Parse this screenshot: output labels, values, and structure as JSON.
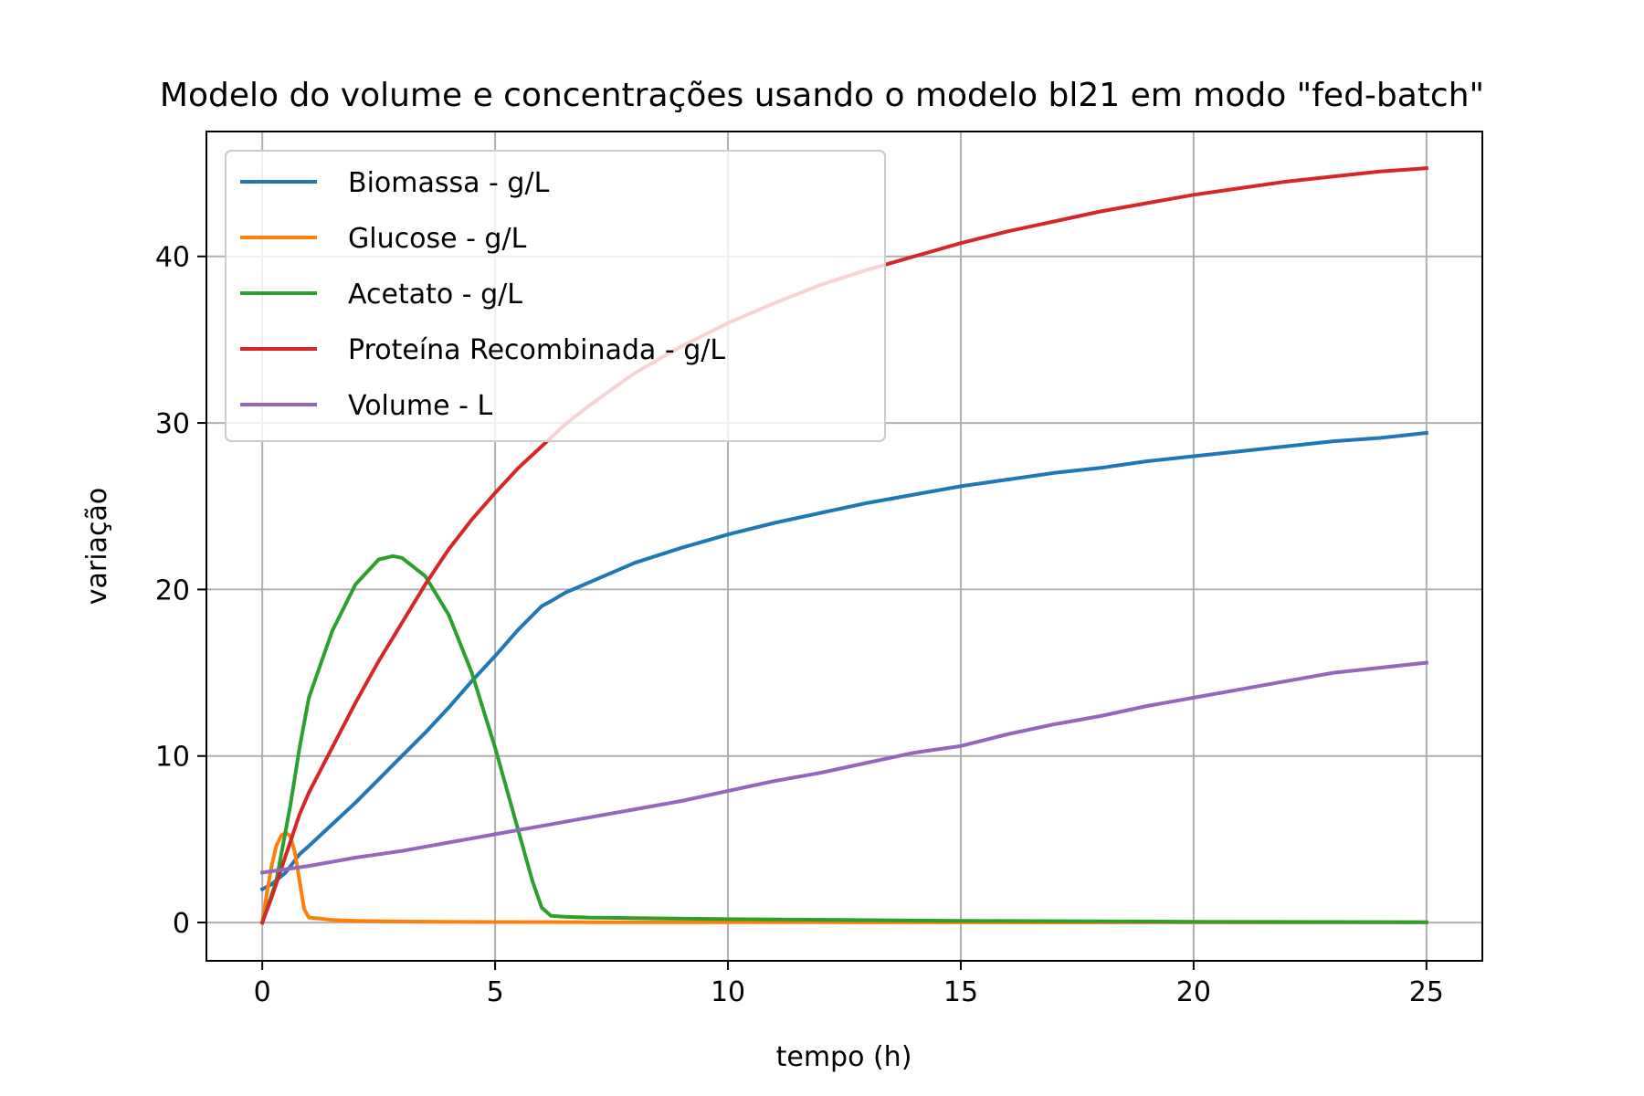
{
  "chart_data": {
    "type": "line",
    "title": "Modelo do volume e concentrações usando o modelo bl21 em modo \"fed-batch\"",
    "xlabel": "tempo (h)",
    "ylabel": "variação",
    "xlim": [
      -1.2,
      26.2
    ],
    "ylim": [
      -2.3,
      47.5
    ],
    "xticks": [
      0,
      5,
      10,
      15,
      20,
      25
    ],
    "yticks": [
      0,
      10,
      20,
      30,
      40
    ],
    "grid": true,
    "legend": "upper-left",
    "series": [
      {
        "name": "Biomassa - g/L",
        "color": "#1f77b4",
        "x": [
          0,
          0.2,
          0.5,
          0.8,
          1.0,
          1.5,
          2,
          2.5,
          3,
          3.5,
          4,
          4.5,
          5,
          5.5,
          6.0,
          6.2,
          6.5,
          7,
          8,
          9,
          10,
          11,
          12,
          13,
          14,
          15,
          16,
          17,
          18,
          19,
          20,
          21,
          22,
          23,
          24,
          25
        ],
        "y": [
          2.0,
          2.3,
          3.0,
          4.1,
          4.6,
          5.9,
          7.2,
          8.6,
          10.0,
          11.4,
          12.9,
          14.5,
          16.0,
          17.6,
          19.0,
          19.3,
          19.8,
          20.4,
          21.6,
          22.5,
          23.3,
          24.0,
          24.6,
          25.2,
          25.7,
          26.2,
          26.6,
          27.0,
          27.3,
          27.7,
          28.0,
          28.3,
          28.6,
          28.9,
          29.1,
          29.4
        ]
      },
      {
        "name": "Glucose - g/L",
        "color": "#ff7f0e",
        "x": [
          0,
          0.1,
          0.2,
          0.3,
          0.4,
          0.5,
          0.6,
          0.7,
          0.8,
          0.9,
          1.0,
          1.2,
          1.5,
          2,
          3,
          5,
          7,
          10,
          15,
          20,
          25
        ],
        "y": [
          0.0,
          1.8,
          3.4,
          4.6,
          5.2,
          5.4,
          5.2,
          4.2,
          2.5,
          0.8,
          0.3,
          0.25,
          0.15,
          0.1,
          0.06,
          0.03,
          0.02,
          0.02,
          0.01,
          0.01,
          0.01
        ]
      },
      {
        "name": "Acetato - g/L",
        "color": "#2ca02c",
        "x": [
          0,
          0.3,
          0.6,
          0.8,
          1.0,
          1.5,
          2,
          2.5,
          2.8,
          3,
          3.5,
          4,
          4.5,
          5,
          5.5,
          5.8,
          6.0,
          6.2,
          6.5,
          7,
          10,
          15,
          20,
          25
        ],
        "y": [
          0.0,
          2.5,
          7.0,
          10.5,
          13.5,
          17.5,
          20.3,
          21.8,
          22.0,
          21.9,
          20.8,
          18.5,
          15.0,
          10.5,
          5.5,
          2.5,
          0.9,
          0.4,
          0.35,
          0.3,
          0.2,
          0.1,
          0.05,
          0.02
        ]
      },
      {
        "name": "Proteína Recombinada - g/L",
        "color": "#d62728",
        "x": [
          0,
          0.2,
          0.5,
          0.8,
          1.0,
          1.5,
          2,
          2.5,
          3,
          3.5,
          4,
          4.5,
          5,
          5.5,
          6,
          6.5,
          7,
          8,
          9,
          10,
          11,
          12,
          13,
          14,
          15,
          16,
          17,
          18,
          19,
          20,
          21,
          22,
          23,
          24,
          25
        ],
        "y": [
          0.0,
          1.5,
          4.0,
          6.5,
          7.8,
          10.5,
          13.2,
          15.7,
          18.0,
          20.3,
          22.4,
          24.2,
          25.8,
          27.3,
          28.6,
          29.9,
          31.0,
          33.0,
          34.6,
          36.0,
          37.2,
          38.3,
          39.2,
          40.0,
          40.8,
          41.5,
          42.1,
          42.7,
          43.2,
          43.7,
          44.1,
          44.5,
          44.8,
          45.1,
          45.3
        ]
      },
      {
        "name": "Volume - L",
        "color": "#9467bd",
        "x": [
          0,
          1,
          2,
          3,
          4,
          5,
          6,
          7,
          8,
          9,
          10,
          11,
          12,
          13,
          14,
          15,
          16,
          17,
          18,
          19,
          20,
          21,
          22,
          23,
          24,
          25
        ],
        "y": [
          3.0,
          3.4,
          3.9,
          4.3,
          4.8,
          5.3,
          5.8,
          6.3,
          6.8,
          7.3,
          7.9,
          8.5,
          9.0,
          9.6,
          10.2,
          10.6,
          11.3,
          11.9,
          12.4,
          13.0,
          13.5,
          14.0,
          14.5,
          15.0,
          15.3,
          15.6
        ]
      }
    ]
  }
}
